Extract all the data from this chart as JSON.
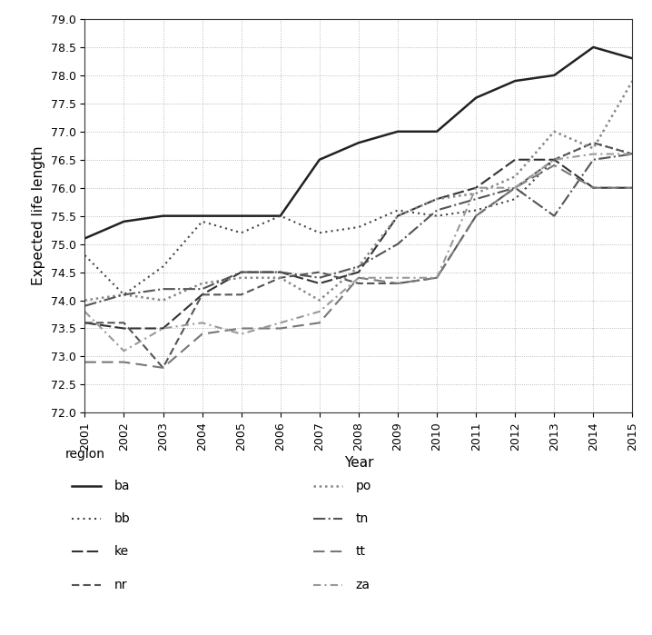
{
  "years": [
    2001,
    2002,
    2003,
    2004,
    2005,
    2006,
    2007,
    2008,
    2009,
    2010,
    2011,
    2012,
    2013,
    2014,
    2015
  ],
  "series": {
    "ba": [
      75.1,
      75.4,
      75.5,
      75.5,
      75.5,
      75.5,
      76.5,
      76.8,
      77.0,
      77.0,
      77.6,
      77.9,
      78.0,
      78.5,
      78.3
    ],
    "bb": [
      74.8,
      74.1,
      74.6,
      75.4,
      75.2,
      75.5,
      75.2,
      75.3,
      75.6,
      75.5,
      75.6,
      75.8,
      76.5,
      76.8,
      76.6
    ],
    "ke": [
      73.6,
      73.5,
      73.5,
      74.1,
      74.5,
      74.5,
      74.3,
      74.5,
      75.5,
      75.8,
      76.0,
      76.5,
      76.5,
      76.0,
      76.0
    ],
    "nr": [
      73.6,
      73.6,
      72.8,
      74.1,
      74.1,
      74.4,
      74.5,
      74.3,
      74.3,
      74.4,
      75.5,
      76.0,
      76.5,
      76.8,
      76.6
    ],
    "po": [
      74.0,
      74.1,
      74.0,
      74.3,
      74.4,
      74.4,
      74.0,
      74.6,
      75.5,
      75.8,
      75.9,
      76.2,
      77.0,
      76.7,
      77.9
    ],
    "tn": [
      73.9,
      74.1,
      74.2,
      74.2,
      74.5,
      74.5,
      74.4,
      74.6,
      75.0,
      75.6,
      75.8,
      76.0,
      75.5,
      76.5,
      76.6
    ],
    "tt": [
      72.9,
      72.9,
      72.8,
      73.4,
      73.5,
      73.5,
      73.6,
      74.4,
      74.3,
      74.4,
      75.5,
      76.0,
      76.4,
      76.0,
      76.0
    ],
    "za": [
      73.8,
      73.1,
      73.5,
      73.6,
      73.4,
      73.6,
      73.8,
      74.4,
      74.4,
      74.4,
      76.0,
      76.0,
      76.5,
      76.6,
      76.6
    ]
  },
  "xlabel": "Year",
  "ylabel": "Expected life length",
  "ylim": [
    72.0,
    79.0
  ],
  "yticks": [
    72.0,
    72.5,
    73.0,
    73.5,
    74.0,
    74.5,
    75.0,
    75.5,
    76.0,
    76.5,
    77.0,
    77.5,
    78.0,
    78.5,
    79.0
  ],
  "background_color": "#ffffff",
  "regions_left": [
    "ba",
    "bb",
    "ke",
    "nr"
  ],
  "regions_right": [
    "po",
    "tn",
    "tt",
    "za"
  ]
}
